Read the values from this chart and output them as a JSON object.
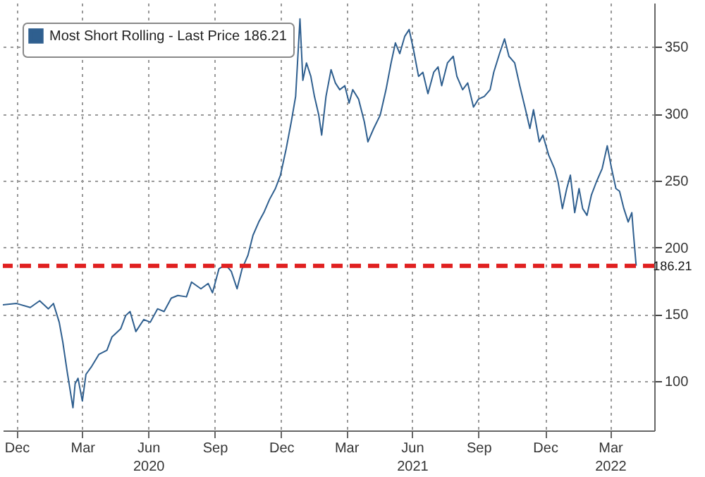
{
  "chart_data": {
    "type": "line",
    "series": [
      {
        "name": "Most Short Rolling - Last Price 186.21",
        "color": "#2f5f8f",
        "x": [
          "2019-12-12",
          "2019-12-31",
          "2020-01-19",
          "2020-02-01",
          "2020-02-13",
          "2020-02-20",
          "2020-02-28",
          "2020-03-04",
          "2020-03-10",
          "2020-03-18",
          "2020-03-21",
          "2020-03-25",
          "2020-03-31",
          "2020-04-05",
          "2020-04-13",
          "2020-04-23",
          "2020-05-04",
          "2020-05-11",
          "2020-05-23",
          "2020-05-30",
          "2020-06-05",
          "2020-06-13",
          "2020-06-24",
          "2020-07-03",
          "2020-07-13",
          "2020-07-22",
          "2020-08-01",
          "2020-08-10",
          "2020-08-22",
          "2020-08-29",
          "2020-09-11",
          "2020-09-21",
          "2020-09-27",
          "2020-10-06",
          "2020-10-15",
          "2020-10-23",
          "2020-10-31",
          "2020-11-07",
          "2020-11-15",
          "2020-11-22",
          "2020-11-30",
          "2020-12-07",
          "2020-12-15",
          "2020-12-23",
          "2020-12-30",
          "2021-01-07",
          "2021-01-14",
          "2021-01-20",
          "2021-01-26",
          "2021-01-30",
          "2021-02-04",
          "2021-02-10",
          "2021-02-15",
          "2021-02-21",
          "2021-02-25",
          "2021-03-03",
          "2021-03-10",
          "2021-03-16",
          "2021-03-22",
          "2021-03-29",
          "2021-04-04",
          "2021-04-09",
          "2021-04-17",
          "2021-04-25",
          "2021-04-30",
          "2021-05-08",
          "2021-05-17",
          "2021-05-25",
          "2021-06-01",
          "2021-06-07",
          "2021-06-13",
          "2021-06-20",
          "2021-06-26",
          "2021-07-02",
          "2021-07-09",
          "2021-07-15",
          "2021-07-22",
          "2021-07-30",
          "2021-08-05",
          "2021-08-10",
          "2021-08-18",
          "2021-08-26",
          "2021-08-31",
          "2021-09-08",
          "2021-09-15",
          "2021-09-23",
          "2021-09-30",
          "2021-10-08",
          "2021-10-16",
          "2021-10-21",
          "2021-10-29",
          "2021-11-05",
          "2021-11-11",
          "2021-11-19",
          "2021-11-26",
          "2021-12-04",
          "2021-12-10",
          "2021-12-15",
          "2021-12-23",
          "2021-12-28",
          "2022-01-05",
          "2022-01-13",
          "2022-01-18",
          "2022-01-24",
          "2022-01-30",
          "2022-02-04",
          "2022-02-10",
          "2022-02-16",
          "2022-02-21",
          "2022-02-27",
          "2022-03-05",
          "2022-03-12",
          "2022-03-20",
          "2022-03-27",
          "2022-04-02",
          "2022-04-08",
          "2022-04-13",
          "2022-04-19",
          "2022-04-25",
          "2022-04-30",
          "2022-05-02",
          "2022-05-06"
        ],
        "values": [
          157,
          158,
          155,
          160,
          154,
          158,
          144,
          129,
          107,
          80,
          98,
          102,
          85,
          105,
          111,
          120,
          123,
          133,
          139,
          149,
          152,
          137,
          146,
          144,
          154,
          152,
          162,
          164,
          163,
          174,
          169,
          173,
          166,
          184,
          187,
          182,
          169,
          184,
          194,
          209,
          219,
          226,
          236,
          244,
          254,
          274,
          294,
          313,
          371,
          325,
          338,
          328,
          313,
          299,
          284,
          313,
          333,
          323,
          318,
          321,
          308,
          318,
          311,
          294,
          279,
          289,
          299,
          318,
          338,
          353,
          345,
          358,
          363,
          348,
          328,
          331,
          315,
          331,
          335,
          321,
          338,
          343,
          328,
          318,
          323,
          305,
          311,
          313,
          318,
          331,
          345,
          356,
          343,
          338,
          321,
          303,
          289,
          303,
          279,
          284,
          269,
          259,
          249,
          229,
          244,
          254,
          226,
          244,
          229,
          224,
          239,
          249,
          259,
          276,
          259,
          244,
          242,
          229,
          219,
          226,
          212,
          186.21
        ]
      }
    ],
    "xlim": [
      "2019-12-12",
      "2022-05-31"
    ],
    "xticks": [
      {
        "value": "2019-12-31",
        "label": "Dec"
      },
      {
        "value": "2020-03-31",
        "label": "Mar"
      },
      {
        "value": "2020-06-30",
        "label": "Jun\n2020"
      },
      {
        "value": "2020-09-30",
        "label": "Sep"
      },
      {
        "value": "2020-12-31",
        "label": "Dec"
      },
      {
        "value": "2021-03-31",
        "label": "Mar"
      },
      {
        "value": "2021-06-30",
        "label": "Jun\n2021"
      },
      {
        "value": "2021-09-30",
        "label": "Sep"
      },
      {
        "value": "2021-12-31",
        "label": "Dec"
      },
      {
        "value": "2022-03-31",
        "label": "Mar\n2022"
      }
    ],
    "ylim": [
      63,
      383
    ],
    "yticks": [
      100,
      150,
      200,
      250,
      300,
      350
    ],
    "ref_lines": [
      {
        "axis": "y",
        "value": 186.21,
        "color": "#e02020",
        "line_style": "dashed"
      }
    ],
    "annotations": [
      {
        "text": "186.21",
        "x": "2022-05-06",
        "y": 186.21
      }
    ],
    "grid": true,
    "legend": "top left"
  }
}
